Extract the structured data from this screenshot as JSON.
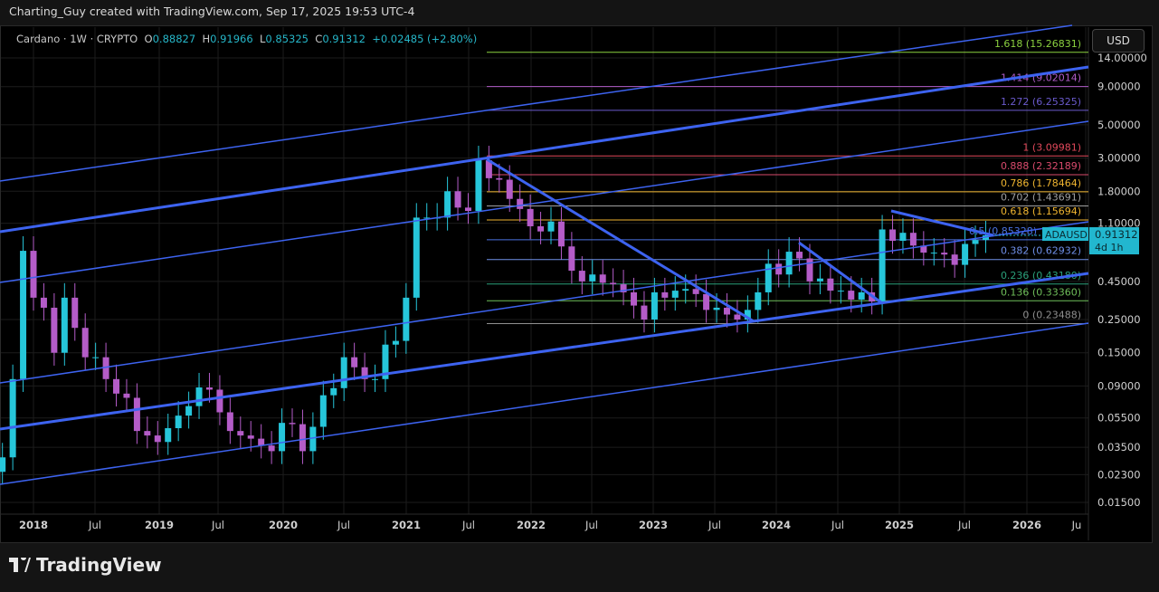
{
  "credit": "Charting_Guy created with TradingView.com, Sep 17, 2025 19:53 UTC-4",
  "legend": {
    "symbol": "Cardano · 1W · CRYPTO",
    "o_label": "O",
    "o": "0.88827",
    "h_label": "H",
    "h": "0.91966",
    "l_label": "L",
    "l": "0.85325",
    "c_label": "C",
    "c": "0.91312",
    "change": "+0.02485 (+2.80%)"
  },
  "currency": "USD",
  "price_tag": {
    "symbol": "ADAUSD",
    "price": "0.91312",
    "countdown": "4d 1h",
    "color": "#22b7cf"
  },
  "brand": "TradingView",
  "colors": {
    "up": "#26c6da",
    "down": "#b45cc8",
    "trend": "#3d63f0"
  },
  "chart_data": {
    "type": "candlestick",
    "title": "Cardano · 1W · CRYPTO",
    "yscale": "log",
    "ylim": [
      0.0135,
      16
    ],
    "grid": true,
    "y_ticks": [
      "14.00000",
      "9.00000",
      "5.00000",
      "3.00000",
      "1.80000",
      "1.10000",
      "0.45000",
      "0.25000",
      "0.15000",
      "0.09000",
      "0.05500",
      "0.03500",
      "0.02300",
      "0.01500"
    ],
    "x_ticks": [
      "2018",
      "Jul",
      "2019",
      "Jul",
      "2020",
      "Jul",
      "2021",
      "Jul",
      "2022",
      "Jul",
      "2023",
      "Jul",
      "2024",
      "Jul",
      "2025",
      "Jul",
      "2026",
      "Ju"
    ],
    "start_month": "2017-10",
    "closes": [
      0.03,
      0.1,
      0.72,
      0.35,
      0.3,
      0.15,
      0.35,
      0.22,
      0.14,
      0.14,
      0.1,
      0.08,
      0.075,
      0.045,
      0.042,
      0.038,
      0.047,
      0.057,
      0.066,
      0.088,
      0.085,
      0.06,
      0.045,
      0.042,
      0.04,
      0.036,
      0.033,
      0.051,
      0.05,
      0.033,
      0.048,
      0.078,
      0.087,
      0.14,
      0.12,
      0.1,
      0.1,
      0.17,
      0.18,
      0.35,
      1.2,
      1.2,
      1.2,
      1.8,
      1.4,
      1.33,
      2.9,
      2.2,
      2.15,
      1.6,
      1.37,
      1.05,
      0.97,
      1.13,
      0.77,
      0.53,
      0.45,
      0.5,
      0.44,
      0.43,
      0.38,
      0.31,
      0.25,
      0.38,
      0.35,
      0.39,
      0.4,
      0.37,
      0.29,
      0.3,
      0.27,
      0.25,
      0.29,
      0.38,
      0.59,
      0.5,
      0.71,
      0.64,
      0.45,
      0.47,
      0.39,
      0.39,
      0.34,
      0.38,
      0.33,
      1.0,
      0.84,
      0.95,
      0.78,
      0.7,
      0.7,
      0.68,
      0.58,
      0.8,
      0.85,
      0.91312
    ],
    "fib_levels": [
      {
        "label": "1.618 (15.26831)",
        "value": 15.26831,
        "color": "#8bd13f"
      },
      {
        "label": "1.414 (9.02014)",
        "value": 9.02014,
        "color": "#b05cc8"
      },
      {
        "label": "1.272 (6.25325)",
        "value": 6.25325,
        "color": "#6a5acd"
      },
      {
        "label": "1 (3.09981)",
        "value": 3.09981,
        "color": "#e0485a"
      },
      {
        "label": "0.888 (2.32189)",
        "value": 2.32189,
        "color": "#d84a6c"
      },
      {
        "label": "0.786 (1.78464)",
        "value": 1.78464,
        "color": "#f0b530"
      },
      {
        "label": "0.702 (1.43691)",
        "value": 1.43691,
        "color": "#a0a0a0"
      },
      {
        "label": "0.618 (1.15694)",
        "value": 1.15694,
        "color": "#f0b530"
      },
      {
        "label": "0.5 (0.85328)",
        "value": 0.85328,
        "color": "#4a72e0"
      },
      {
        "label": "0.382 (0.62932)",
        "value": 0.62932,
        "color": "#6f8fe8"
      },
      {
        "label": "0.236 (0.43180)",
        "value": 0.4318,
        "color": "#2aa07a"
      },
      {
        "label": "0.136 (0.33360)",
        "value": 0.3336,
        "color": "#6fbf5a"
      },
      {
        "label": "0 (0.23488)",
        "value": 0.23488,
        "color": "#909090"
      }
    ]
  }
}
